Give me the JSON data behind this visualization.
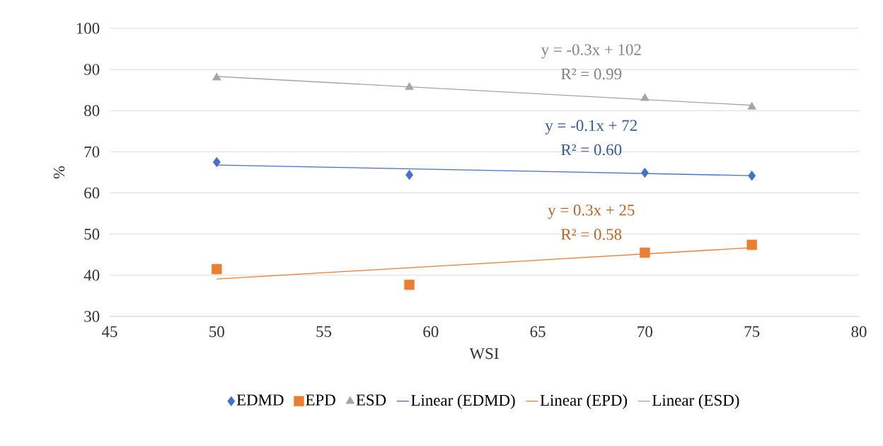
{
  "chart_data": {
    "type": "scatter",
    "xlabel": "WSI",
    "ylabel": "%",
    "xlim": [
      45,
      80
    ],
    "xticks": [
      45,
      50,
      55,
      60,
      65,
      70,
      75,
      80
    ],
    "ylim": [
      30,
      100
    ],
    "yticks": [
      30,
      40,
      50,
      60,
      70,
      80,
      90,
      100
    ],
    "grid": "y",
    "legend": "bottom",
    "series": [
      {
        "name": "EDMD",
        "marker": "diamond",
        "color": "#4472c4",
        "x": [
          50,
          59,
          70,
          75
        ],
        "values": [
          67.5,
          64.4,
          64.9,
          64.2
        ]
      },
      {
        "name": "EPD",
        "marker": "square",
        "color": "#ed7d31",
        "x": [
          50,
          59,
          70,
          75
        ],
        "values": [
          41.5,
          37.7,
          45.5,
          47.4
        ]
      },
      {
        "name": "ESD",
        "marker": "triangle",
        "color": "#a5a5a5",
        "x": [
          50,
          59,
          70,
          75
        ],
        "values": [
          88,
          85.7,
          83,
          80.9
        ]
      },
      {
        "name": "Linear (EDMD)",
        "type": "line",
        "marker": "none",
        "color": "#4472c4",
        "x": [
          50,
          75
        ],
        "values": [
          66.8,
          64.2
        ]
      },
      {
        "name": "Linear (EPD)",
        "type": "line",
        "marker": "none",
        "color": "#ed7d31",
        "x": [
          50,
          75
        ],
        "values": [
          39.1,
          46.7
        ]
      },
      {
        "name": "Linear (ESD)",
        "type": "line",
        "marker": "none",
        "color": "#a5a5a5",
        "x": [
          50,
          75
        ],
        "values": [
          88.3,
          81.3
        ]
      }
    ],
    "annotations": [
      "y = -0.1x + 72",
      "R² = 0.60",
      "y = 0.3x + 25",
      "R² = 0.58",
      "y = -0.3x + 102",
      "R² = 0.99"
    ]
  }
}
